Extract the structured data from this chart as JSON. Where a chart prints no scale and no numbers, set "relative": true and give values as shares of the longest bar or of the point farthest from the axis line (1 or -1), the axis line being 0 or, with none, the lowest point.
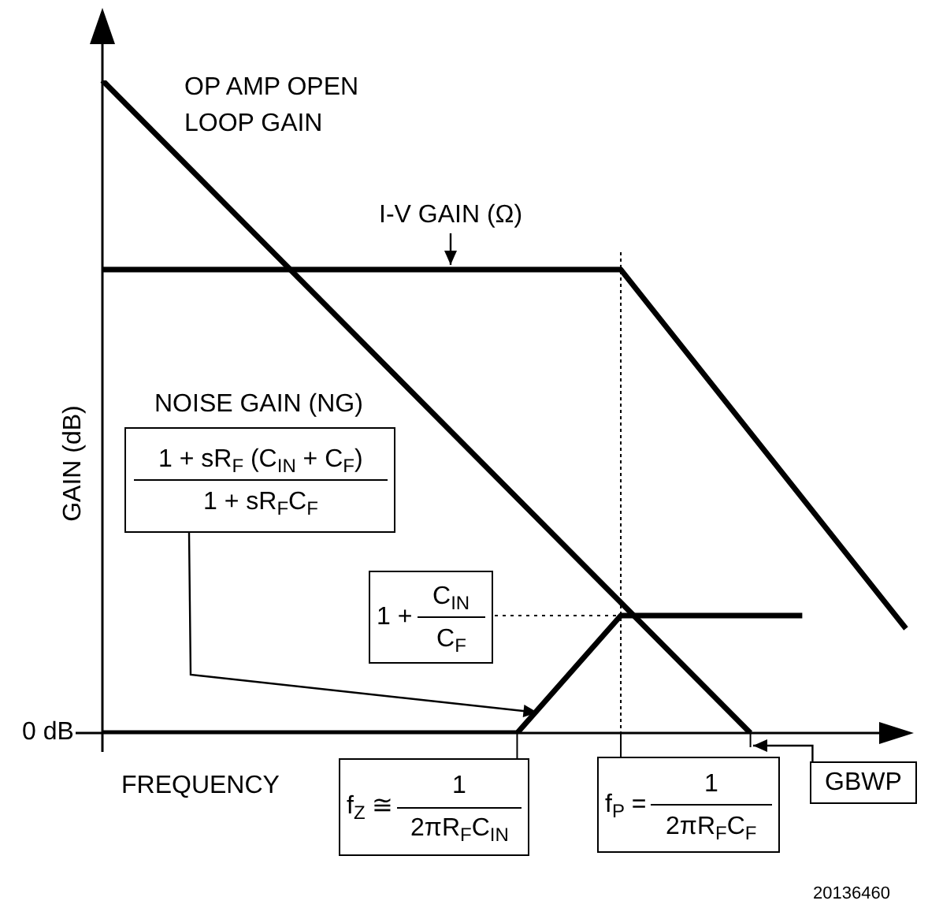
{
  "chart_data": {
    "type": "line",
    "relative": true,
    "xlabel": "FREQUENCY",
    "ylabel": "GAIN (dB)",
    "marker": "none",
    "line_style": "solid",
    "legend": false,
    "ref_lines": [
      {
        "axis": "y",
        "value": 0.18,
        "line_style": "dotted"
      }
    ],
    "categories": [
      null,
      null,
      null,
      null,
      null,
      null,
      null,
      null,
      null,
      null,
      null,
      null,
      null,
      null,
      null,
      null,
      null,
      null,
      null,
      null,
      null,
      null,
      null,
      null,
      null,
      null,
      null,
      null,
      null,
      null,
      null,
      null
    ],
    "series": [
      {
        "name": "OP AMP OPEN LOOP GAIN",
        "color": "#000000",
        "values": [
          1,
          null,
          null,
          null,
          null,
          null,
          null,
          null,
          null,
          null,
          null,
          null,
          null,
          null,
          null,
          null,
          null,
          null,
          null,
          null,
          null,
          null,
          null,
          null,
          null,
          0,
          null,
          null,
          null,
          null,
          null,
          null
        ]
      },
      {
        "name": "I-V GAIN (Ω)",
        "color": "#000000",
        "values": [
          0.71,
          null,
          null,
          null,
          null,
          null,
          null,
          null,
          null,
          null,
          null,
          null,
          null,
          null,
          null,
          null,
          null,
          null,
          null,
          null,
          0.71,
          null,
          null,
          null,
          null,
          null,
          null,
          null,
          null,
          null,
          null,
          0.16
        ]
      },
      {
        "color": "#000000",
        "values": [
          0,
          null,
          null,
          null,
          null,
          null,
          null,
          null,
          null,
          null,
          null,
          null,
          null,
          null,
          null,
          null,
          0,
          null,
          null,
          null,
          0.18,
          null,
          null,
          null,
          null,
          null,
          null,
          0.18,
          null,
          null,
          null,
          null
        ]
      }
    ],
    "annotations": [
      "0 dB",
      "1 + sR$_{F}$ (C$_{IN}$ + C$_{F}$)",
      "1 + sR$_{F}$C$_{F}$",
      "1 +",
      "C$_{IN}$",
      "C$_{F}$",
      "f$_{Z}$ ≅",
      "1",
      "2πR$_{F}$C$_{IN}$",
      "f$_{P}$ =",
      "1",
      "2πR$_{F}$C$_{F}$",
      "GBWP",
      "20136460",
      "NOISE GAIN (NG)"
    ]
  }
}
